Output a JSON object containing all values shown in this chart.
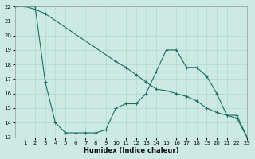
{
  "xlabel": "Humidex (Indice chaleur)",
  "bg_color": "#cce9e4",
  "grid_color": "#b0d8d0",
  "line_color": "#1a7060",
  "xlim": [
    0,
    23
  ],
  "ylim": [
    13,
    22
  ],
  "yticks": [
    13,
    14,
    15,
    16,
    17,
    18,
    19,
    20,
    21,
    22
  ],
  "xticks": [
    1,
    2,
    3,
    4,
    5,
    6,
    7,
    8,
    9,
    10,
    11,
    12,
    13,
    14,
    15,
    16,
    17,
    18,
    19,
    20,
    21,
    22,
    23
  ],
  "series1_x": [
    0,
    1,
    2,
    3,
    10,
    11,
    12,
    13,
    14,
    15,
    16,
    17,
    18,
    19,
    20,
    21,
    22,
    23
  ],
  "series1_y": [
    22,
    22,
    21.8,
    21.5,
    18.2,
    17.8,
    17.3,
    16.8,
    16.3,
    16.2,
    16.0,
    15.8,
    15.5,
    15.0,
    14.7,
    14.5,
    14.5,
    13.0
  ],
  "series2_x": [
    0,
    1,
    2,
    3,
    4,
    5,
    6,
    7,
    8,
    9,
    10,
    11,
    12,
    13,
    14,
    15,
    16,
    17,
    18,
    19,
    20,
    21,
    22,
    23
  ],
  "series2_y": [
    22,
    22,
    22,
    16.8,
    14.0,
    13.3,
    13.3,
    13.3,
    13.3,
    13.5,
    15.0,
    15.3,
    15.3,
    16.0,
    17.5,
    19.0,
    19.0,
    17.8,
    17.8,
    17.2,
    16.0,
    14.5,
    14.3,
    13.0
  ]
}
